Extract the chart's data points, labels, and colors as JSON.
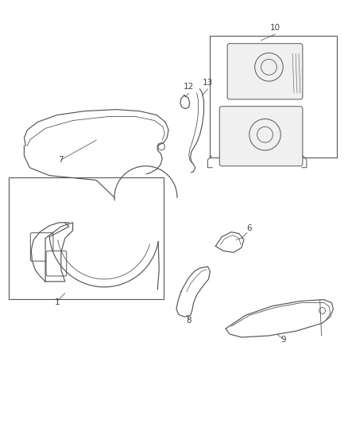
{
  "bg_color": "#ffffff",
  "line_color": "#555555",
  "label_color": "#444444",
  "figsize": [
    4.38,
    5.33
  ],
  "dpi": 100,
  "lw": 0.85,
  "label_fs": 7.5
}
